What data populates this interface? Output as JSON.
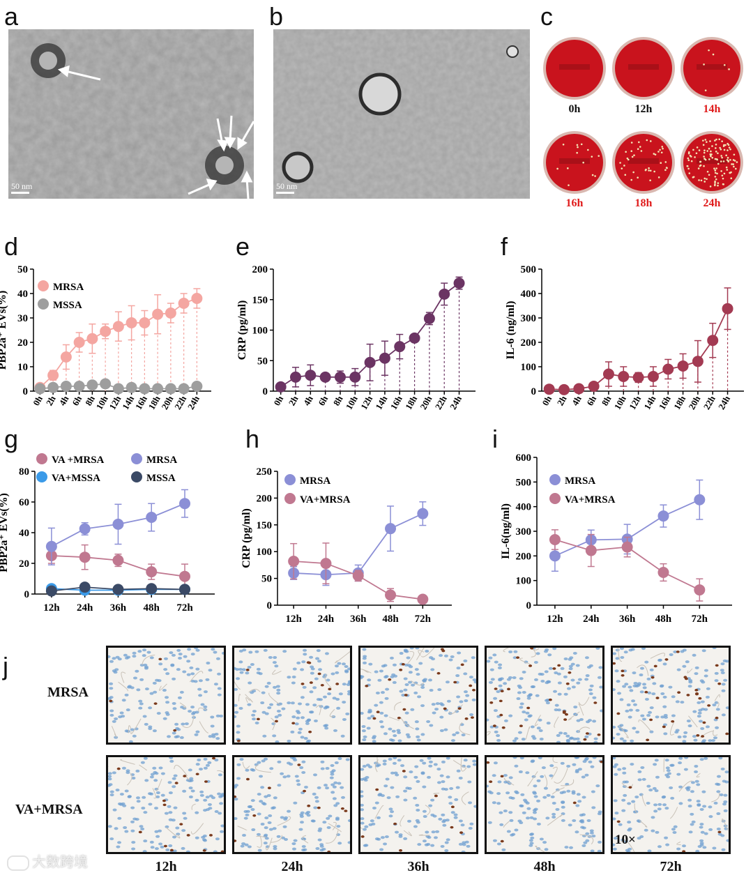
{
  "panels": {
    "a": "a",
    "b": "b",
    "c": "c",
    "d": "d",
    "e": "e",
    "f": "f",
    "g": "g",
    "h": "h",
    "i": "i",
    "j": "j"
  },
  "scale_bar": "50 nm",
  "plates": [
    {
      "label": "0h",
      "color": "#111111",
      "colonies": 0
    },
    {
      "label": "12h",
      "color": "#111111",
      "colonies": 0
    },
    {
      "label": "14h",
      "color": "#e01b1b",
      "colonies": 6
    },
    {
      "label": "16h",
      "color": "#e01b1b",
      "colonies": 14
    },
    {
      "label": "18h",
      "color": "#e01b1b",
      "colonies": 40
    },
    {
      "label": "24h",
      "color": "#e01b1b",
      "colonies": 120
    }
  ],
  "ihc": {
    "rows": [
      "MRSA",
      "VA+MRSA"
    ],
    "cols": [
      "12h",
      "24h",
      "36h",
      "48h",
      "72h"
    ],
    "magnification": "10×",
    "stain_density": [
      [
        4,
        14,
        20,
        26,
        30
      ],
      [
        16,
        12,
        9,
        6,
        4
      ]
    ]
  },
  "watermark": "大数跨境",
  "chart_data": [
    {
      "panel": "d",
      "type": "line",
      "ylabel": "PBP2a⁺ EVs(%)",
      "ylim": [
        0,
        50
      ],
      "yticks": [
        0,
        10,
        20,
        30,
        40,
        50
      ],
      "categories": [
        "0h",
        "2h",
        "4h",
        "6h",
        "8h",
        "10h",
        "12h",
        "14h",
        "16h",
        "18h",
        "20h",
        "22h",
        "24h"
      ],
      "legend": [
        "MRSA",
        "MSSA"
      ],
      "series": [
        {
          "name": "MRSA",
          "color": "#f4a6a1",
          "values": [
            1.5,
            6.5,
            14,
            20,
            21.5,
            24.5,
            26.5,
            28,
            28,
            31.5,
            32,
            36,
            38
          ],
          "err": [
            1,
            2,
            5,
            4,
            6,
            3,
            6,
            7,
            5,
            8,
            4,
            4,
            4
          ]
        },
        {
          "name": "MSSA",
          "color": "#9e9e9e",
          "values": [
            1,
            1.5,
            2,
            2,
            2.5,
            3,
            1,
            1.5,
            1,
            1,
            1,
            1,
            2
          ],
          "err": [
            0.5,
            0.5,
            0.5,
            0.5,
            0.5,
            0.5,
            0.5,
            0.5,
            0.5,
            0.5,
            0.5,
            0.5,
            0.5
          ]
        }
      ],
      "dropLines": true
    },
    {
      "panel": "e",
      "type": "line",
      "ylabel": "CRP  (pg/ml)",
      "ylim": [
        0,
        200
      ],
      "yticks": [
        0,
        50,
        100,
        150,
        200
      ],
      "categories": [
        "0h",
        "2h",
        "4h",
        "6h",
        "8h",
        "10h",
        "12h",
        "14h",
        "16h",
        "18h",
        "20h",
        "22h",
        "24h"
      ],
      "series": [
        {
          "name": "CRP",
          "color": "#6b3463",
          "values": [
            7,
            23,
            26,
            23,
            23,
            23,
            47,
            54,
            73,
            87,
            119,
            159,
            177
          ],
          "err": [
            2,
            16,
            17,
            6,
            10,
            14,
            30,
            28,
            20,
            6,
            10,
            18,
            10
          ]
        }
      ],
      "dropLines": true
    },
    {
      "panel": "f",
      "type": "line",
      "ylabel": "IL-6 (ng/ml)",
      "ylim": [
        0,
        500
      ],
      "yticks": [
        0,
        100,
        200,
        300,
        400,
        500
      ],
      "categories": [
        "0h",
        "2h",
        "4h",
        "6h",
        "8h",
        "10h",
        "12h",
        "14h",
        "16h",
        "18h",
        "20h",
        "22h",
        "24h"
      ],
      "series": [
        {
          "name": "IL-6",
          "color": "#a33a52",
          "values": [
            8,
            6,
            10,
            20,
            70,
            60,
            56,
            60,
            90,
            103,
            122,
            208,
            338
          ],
          "err": [
            3,
            3,
            4,
            8,
            50,
            40,
            20,
            40,
            40,
            50,
            85,
            70,
            85
          ]
        }
      ],
      "dropLines": true
    },
    {
      "panel": "g",
      "type": "line",
      "ylabel": "PBP2a⁺ EVs(%)",
      "ylim": [
        0,
        80
      ],
      "yticks": [
        0,
        20,
        40,
        60,
        80
      ],
      "categories": [
        "12h",
        "24h",
        "36h",
        "48h",
        "72h"
      ],
      "legend": [
        "VA +MRSA",
        "MRSA",
        "VA+MSSA",
        "MSSA"
      ],
      "series": [
        {
          "name": "VA +MRSA",
          "color": "#c07890",
          "values": [
            25,
            24,
            22,
            14.5,
            11.5
          ],
          "err": [
            5,
            8,
            4,
            5,
            8
          ]
        },
        {
          "name": "MRSA",
          "color": "#8b8fd6",
          "values": [
            31,
            42.5,
            45.5,
            50,
            59
          ],
          "err": [
            12,
            4,
            13,
            9,
            9
          ]
        },
        {
          "name": "VA+MSSA",
          "color": "#3b9ae8",
          "values": [
            3.5,
            2.5,
            2.5,
            3,
            3
          ],
          "err": [
            1,
            1,
            1,
            1,
            1
          ]
        },
        {
          "name": "MSSA",
          "color": "#3b4a66",
          "values": [
            2,
            4.5,
            3,
            3.5,
            3
          ],
          "err": [
            1,
            1,
            1,
            1,
            1
          ]
        }
      ]
    },
    {
      "panel": "h",
      "type": "line",
      "ylabel": "CRP  (pg/ml)",
      "ylim": [
        0,
        250
      ],
      "yticks": [
        0,
        50,
        100,
        150,
        200,
        250
      ],
      "categories": [
        "12h",
        "24h",
        "36h",
        "48h",
        "72h"
      ],
      "legend": [
        "MRSA",
        "VA+MRSA"
      ],
      "series": [
        {
          "name": "MRSA",
          "color": "#8b8fd6",
          "values": [
            60,
            57,
            60,
            143,
            171
          ],
          "err": [
            12,
            20,
            15,
            42,
            22
          ]
        },
        {
          "name": "VA+MRSA",
          "color": "#c07890",
          "values": [
            82,
            78,
            55,
            19,
            11
          ],
          "err": [
            33,
            38,
            10,
            12,
            3
          ]
        }
      ]
    },
    {
      "panel": "i",
      "type": "line",
      "ylabel": "IL-6(ng/ml)",
      "ylim": [
        0,
        600
      ],
      "yticks": [
        0,
        100,
        200,
        300,
        400,
        500,
        600
      ],
      "categories": [
        "12h",
        "24h",
        "36h",
        "48h",
        "72h"
      ],
      "legend": [
        "MRSA",
        "VA+MRSA"
      ],
      "series": [
        {
          "name": "MRSA",
          "color": "#8b8fd6",
          "values": [
            200,
            265,
            268,
            362,
            428
          ],
          "err": [
            62,
            40,
            60,
            45,
            80
          ]
        },
        {
          "name": "VA+MRSA",
          "color": "#c07890",
          "values": [
            266,
            222,
            236,
            133,
            62
          ],
          "err": [
            40,
            65,
            40,
            35,
            45
          ]
        }
      ]
    }
  ]
}
